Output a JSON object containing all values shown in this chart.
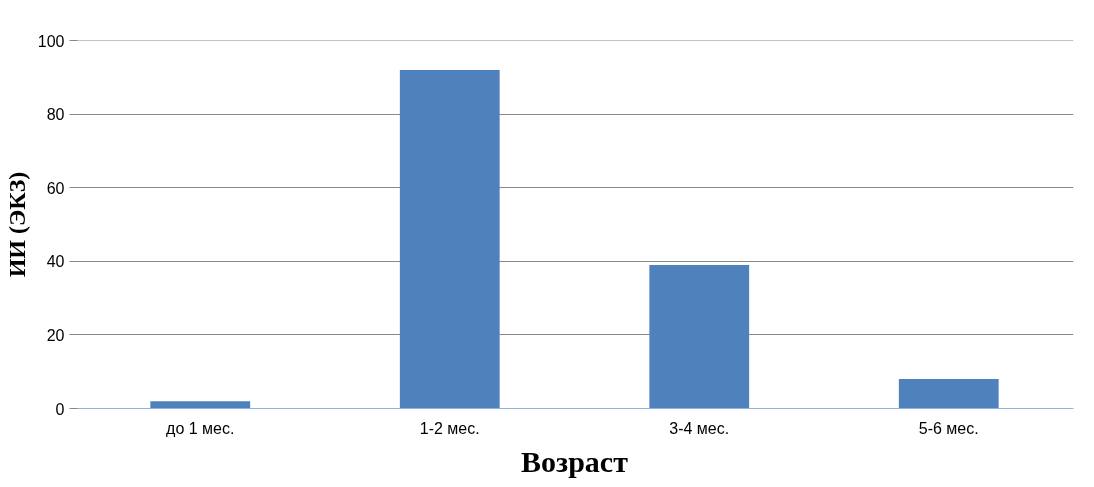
{
  "chart_data": {
    "type": "bar",
    "xlabel": "Возраст",
    "ylabel": "ИИ (ЭКЗ)",
    "categories": [
      "до 1 мес.",
      "1-2 мес.",
      "3-4 мес.",
      "5-6 мес."
    ],
    "values": [
      2,
      92,
      39,
      8
    ],
    "color": "#4f81bd",
    "ylim": [
      0,
      100
    ],
    "yticks": [
      0,
      20,
      40,
      60,
      80,
      100
    ],
    "grid": "y"
  }
}
